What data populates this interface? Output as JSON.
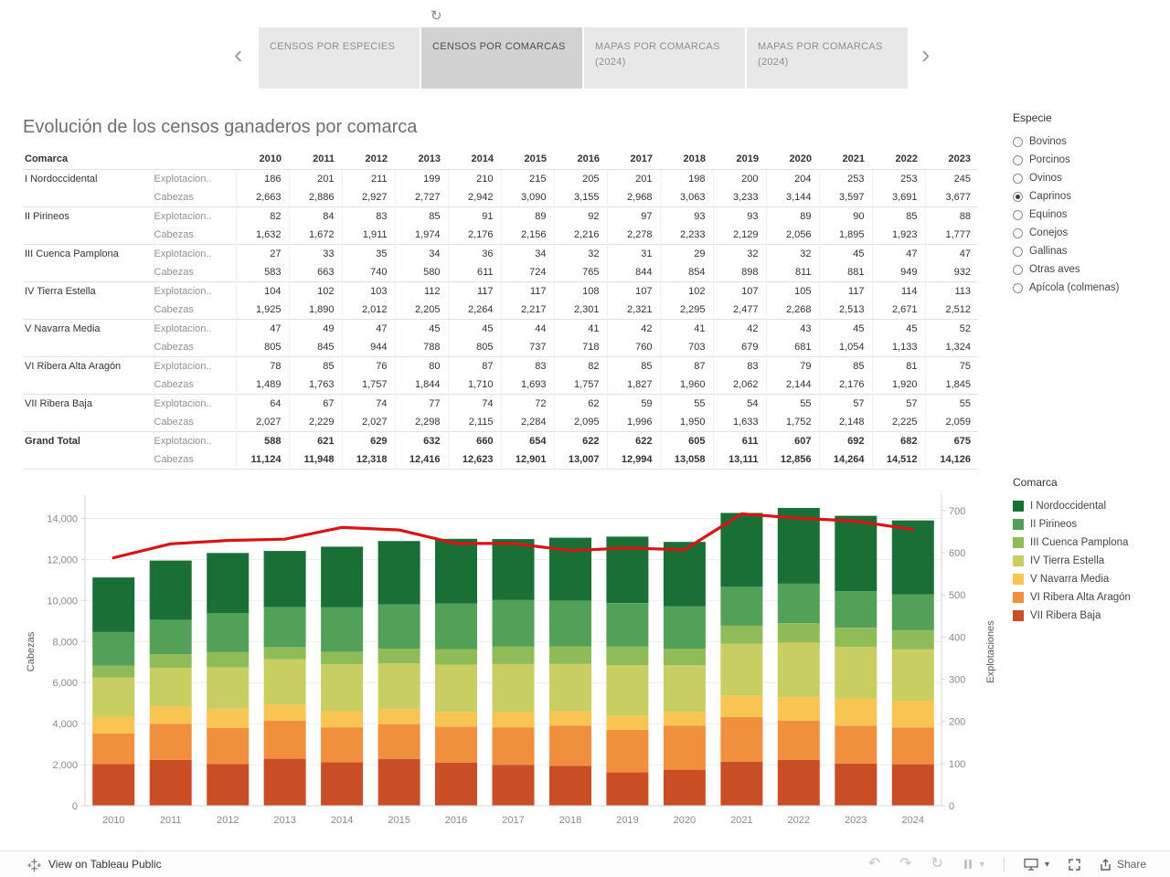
{
  "icons": {
    "refresh": "↻",
    "prev": "‹",
    "next": "›",
    "undo": "↶",
    "redo": "↷",
    "reset": "↻",
    "caret": "▾"
  },
  "tabs": {
    "items": [
      {
        "label": "CENSOS POR ESPECIES",
        "active": false
      },
      {
        "label": "CENSOS POR COMARCAS",
        "active": true
      },
      {
        "label": "MAPAS POR COMARCAS (2024)",
        "active": false
      },
      {
        "label": "MAPAS POR COMARCAS (2024)",
        "active": false
      }
    ]
  },
  "title": "Evolución de los censos ganaderos por comarca",
  "table": {
    "comarca_header": "Comarca",
    "years": [
      "2010",
      "2011",
      "2012",
      "2013",
      "2014",
      "2015",
      "2016",
      "2017",
      "2018",
      "2019",
      "2020",
      "2021",
      "2022",
      "2023"
    ],
    "groups": [
      {
        "comarca": "I Nordoccidental",
        "rows": [
          {
            "measure": "Explotacion..",
            "values": [
              "186",
              "201",
              "211",
              "199",
              "210",
              "215",
              "205",
              "201",
              "198",
              "200",
              "204",
              "253",
              "253",
              "245"
            ]
          },
          {
            "measure": "Cabezas",
            "values": [
              "2,663",
              "2,886",
              "2,927",
              "2,727",
              "2,942",
              "3,090",
              "3,155",
              "2,968",
              "3,063",
              "3,233",
              "3,144",
              "3,597",
              "3,691",
              "3,677"
            ]
          }
        ]
      },
      {
        "comarca": "II Pirineos",
        "rows": [
          {
            "measure": "Explotacion..",
            "values": [
              "82",
              "84",
              "83",
              "85",
              "91",
              "89",
              "92",
              "97",
              "93",
              "93",
              "89",
              "90",
              "85",
              "88"
            ]
          },
          {
            "measure": "Cabezas",
            "values": [
              "1,632",
              "1,672",
              "1,911",
              "1,974",
              "2,176",
              "2,156",
              "2,216",
              "2,278",
              "2,233",
              "2,129",
              "2,056",
              "1,895",
              "1,923",
              "1,777"
            ]
          }
        ]
      },
      {
        "comarca": "III Cuenca Pamplona",
        "rows": [
          {
            "measure": "Explotacion..",
            "values": [
              "27",
              "33",
              "35",
              "34",
              "36",
              "34",
              "32",
              "31",
              "29",
              "32",
              "32",
              "45",
              "47",
              "47"
            ]
          },
          {
            "measure": "Cabezas",
            "values": [
              "583",
              "663",
              "740",
              "580",
              "611",
              "724",
              "765",
              "844",
              "854",
              "898",
              "811",
              "881",
              "949",
              "932"
            ]
          }
        ]
      },
      {
        "comarca": "IV Tierra Estella",
        "rows": [
          {
            "measure": "Explotacion..",
            "values": [
              "104",
              "102",
              "103",
              "112",
              "117",
              "117",
              "108",
              "107",
              "102",
              "107",
              "105",
              "117",
              "114",
              "113"
            ]
          },
          {
            "measure": "Cabezas",
            "values": [
              "1,925",
              "1,890",
              "2,012",
              "2,205",
              "2,264",
              "2,217",
              "2,301",
              "2,321",
              "2,295",
              "2,477",
              "2,268",
              "2,513",
              "2,671",
              "2,512"
            ]
          }
        ]
      },
      {
        "comarca": "V Navarra Media",
        "rows": [
          {
            "measure": "Explotacion..",
            "values": [
              "47",
              "49",
              "47",
              "45",
              "45",
              "44",
              "41",
              "42",
              "41",
              "42",
              "43",
              "45",
              "45",
              "52"
            ]
          },
          {
            "measure": "Cabezas",
            "values": [
              "805",
              "845",
              "944",
              "788",
              "805",
              "737",
              "718",
              "760",
              "703",
              "679",
              "681",
              "1,054",
              "1,133",
              "1,324"
            ]
          }
        ]
      },
      {
        "comarca": "VI Ribera Alta Aragón",
        "rows": [
          {
            "measure": "Explotacion..",
            "values": [
              "78",
              "85",
              "76",
              "80",
              "87",
              "83",
              "82",
              "85",
              "87",
              "83",
              "79",
              "85",
              "81",
              "75"
            ]
          },
          {
            "measure": "Cabezas",
            "values": [
              "1,489",
              "1,763",
              "1,757",
              "1,844",
              "1,710",
              "1,693",
              "1,757",
              "1,827",
              "1,960",
              "2,062",
              "2,144",
              "2,176",
              "1,920",
              "1,845"
            ]
          }
        ]
      },
      {
        "comarca": "VII Ribera Baja",
        "rows": [
          {
            "measure": "Explotacion..",
            "values": [
              "64",
              "67",
              "74",
              "77",
              "74",
              "72",
              "62",
              "59",
              "55",
              "54",
              "55",
              "57",
              "57",
              "55"
            ]
          },
          {
            "measure": "Cabezas",
            "values": [
              "2,027",
              "2,229",
              "2,027",
              "2,298",
              "2,115",
              "2,284",
              "2,095",
              "1,996",
              "1,950",
              "1,633",
              "1,752",
              "2,148",
              "2,225",
              "2,059"
            ]
          }
        ]
      },
      {
        "comarca": "Grand Total",
        "rows": [
          {
            "measure": "Explotacion..",
            "values": [
              "588",
              "621",
              "629",
              "632",
              "660",
              "654",
              "622",
              "622",
              "605",
              "611",
              "607",
              "692",
              "682",
              "675"
            ]
          },
          {
            "measure": "Cabezas",
            "values": [
              "11,124",
              "11,948",
              "12,318",
              "12,416",
              "12,623",
              "12,901",
              "13,007",
              "12,994",
              "13,058",
              "13,111",
              "12,856",
              "14,264",
              "14,512",
              "14,126"
            ]
          }
        ]
      }
    ]
  },
  "especie_filter": {
    "title": "Especie",
    "options": [
      {
        "label": "Bovinos",
        "selected": false
      },
      {
        "label": "Porcinos",
        "selected": false
      },
      {
        "label": "Ovinos",
        "selected": false
      },
      {
        "label": "Caprinos",
        "selected": true
      },
      {
        "label": "Equinos",
        "selected": false
      },
      {
        "label": "Conejos",
        "selected": false
      },
      {
        "label": "Gallinas",
        "selected": false
      },
      {
        "label": "Otras aves",
        "selected": false
      },
      {
        "label": "Apícola (colmenas)",
        "selected": false
      }
    ]
  },
  "legend": {
    "title": "Comarca",
    "items": [
      {
        "label": "I Nordoccidental",
        "color": "#1a6f37"
      },
      {
        "label": "II Pirineos",
        "color": "#53a058"
      },
      {
        "label": "III Cuenca Pamplona",
        "color": "#8fbc59"
      },
      {
        "label": "IV Tierra Estella",
        "color": "#c9ce62"
      },
      {
        "label": "V Navarra Media",
        "color": "#f8c553"
      },
      {
        "label": "VI Ribera Alta Aragón",
        "color": "#f0903e"
      },
      {
        "label": "VII Ribera Baja",
        "color": "#c94e26"
      }
    ]
  },
  "chart_data": {
    "type": "bar",
    "stacked": true,
    "x": [
      "2010",
      "2011",
      "2012",
      "2013",
      "2014",
      "2015",
      "2016",
      "2017",
      "2018",
      "2019",
      "2020",
      "2021",
      "2022",
      "2023",
      "2024"
    ],
    "series": [
      {
        "name": "I Nordoccidental",
        "color": "#1a6f37",
        "values": [
          2663,
          2886,
          2927,
          2727,
          2942,
          3090,
          3155,
          2968,
          3063,
          3233,
          3144,
          3597,
          3691,
          3677,
          3600
        ]
      },
      {
        "name": "II Pirineos",
        "color": "#53a058",
        "values": [
          1632,
          1672,
          1911,
          1974,
          2176,
          2156,
          2216,
          2278,
          2233,
          2129,
          2056,
          1895,
          1923,
          1777,
          1750
        ]
      },
      {
        "name": "III Cuenca Pamplona",
        "color": "#8fbc59",
        "values": [
          583,
          663,
          740,
          580,
          611,
          724,
          765,
          844,
          854,
          898,
          811,
          881,
          949,
          932,
          930
        ]
      },
      {
        "name": "IV Tierra Estella",
        "color": "#c9ce62",
        "values": [
          1925,
          1890,
          2012,
          2205,
          2264,
          2217,
          2301,
          2321,
          2295,
          2477,
          2268,
          2513,
          2671,
          2512,
          2500
        ]
      },
      {
        "name": "V Navarra Media",
        "color": "#f8c553",
        "values": [
          805,
          845,
          944,
          788,
          805,
          737,
          718,
          760,
          703,
          679,
          681,
          1054,
          1133,
          1324,
          1300
        ]
      },
      {
        "name": "VI Ribera Alta Aragón",
        "color": "#f0903e",
        "values": [
          1489,
          1763,
          1757,
          1844,
          1710,
          1693,
          1757,
          1827,
          1960,
          2062,
          2144,
          2176,
          1920,
          1845,
          1800
        ]
      },
      {
        "name": "VII Ribera Baja",
        "color": "#c94e26",
        "values": [
          2027,
          2229,
          2027,
          2298,
          2115,
          2284,
          2095,
          1996,
          1950,
          1633,
          1752,
          2148,
          2225,
          2059,
          2020
        ]
      }
    ],
    "stack_order_bottom_to_top": [
      "VII Ribera Baja",
      "VI Ribera Alta Aragón",
      "V Navarra Media",
      "IV Tierra Estella",
      "III Cuenca Pamplona",
      "II Pirineos",
      "I Nordoccidental"
    ],
    "line_series": {
      "name": "Explotaciones",
      "color": "#d91414",
      "axis": "right",
      "values": [
        588,
        621,
        629,
        632,
        660,
        654,
        622,
        622,
        605,
        611,
        607,
        692,
        682,
        675,
        655
      ]
    },
    "title": "",
    "ylabel_left": "Cabezas",
    "ylabel_right": "Explotaciones",
    "ylim_left": [
      0,
      15000
    ],
    "ylim_right": [
      0,
      730
    ],
    "yticks_left": [
      0,
      2000,
      4000,
      6000,
      8000,
      10000,
      12000,
      14000
    ],
    "yticks_right": [
      0,
      100,
      200,
      300,
      400,
      500,
      600,
      700
    ],
    "grid": true,
    "legend_position": "right"
  },
  "toolbar": {
    "view_label": "View on Tableau Public",
    "share_label": "Share"
  }
}
